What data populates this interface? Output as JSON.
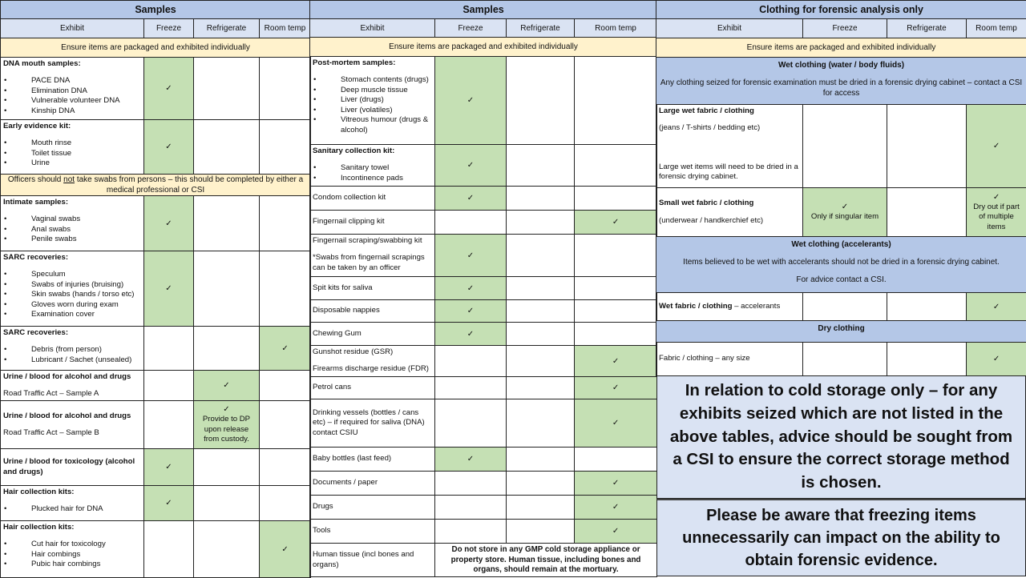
{
  "check_symbol": "✓",
  "colors": {
    "title_bg": "#b4c7e7",
    "header_bg": "#dae3f3",
    "note_bg": "#fff2cc",
    "green": "#c5e0b4"
  },
  "panels": [
    {
      "title": "Samples",
      "headers": [
        "Exhibit",
        "Freeze",
        "Refrigerate",
        "Room temp"
      ],
      "rows": [
        {
          "type": "note",
          "segs": [
            {
              "t": "Ensure items are packaged and exhibited individually"
            }
          ]
        },
        {
          "type": "item",
          "lines": [
            {
              "b": "DNA mouth samples:"
            },
            {
              "li": "PACE DNA"
            },
            {
              "li": "Elimination DNA"
            },
            {
              "li": "Vulnerable volunteer DNA"
            },
            {
              "li": "Kinship DNA"
            }
          ],
          "cells": [
            {
              "check": true
            },
            null,
            null
          ]
        },
        {
          "type": "item",
          "lines": [
            {
              "b": "Early evidence kit:"
            },
            {
              "li": "Mouth rinse"
            },
            {
              "li": "Toilet tissue"
            },
            {
              "li": "Urine"
            }
          ],
          "cells": [
            {
              "check": true
            },
            null,
            null
          ]
        },
        {
          "type": "note",
          "segs": [
            {
              "t": "Officers should "
            },
            {
              "t": "not",
              "u": true
            },
            {
              "t": " take swabs from persons – this should be completed by either a medical professional or CSI"
            }
          ]
        },
        {
          "type": "item",
          "lines": [
            {
              "b": "Intimate samples:"
            },
            {
              "li": "Vaginal swabs"
            },
            {
              "li": "Anal swabs"
            },
            {
              "li": "Penile swabs"
            }
          ],
          "cells": [
            {
              "check": true
            },
            null,
            null
          ]
        },
        {
          "type": "item",
          "lines": [
            {
              "b": "SARC recoveries:"
            },
            {
              "li": "Speculum"
            },
            {
              "li": "Swabs of injuries (bruising)"
            },
            {
              "li": "Skin swabs (hands / torso etc)"
            },
            {
              "li": "Gloves worn during exam"
            },
            {
              "li": "Examination cover"
            }
          ],
          "cells": [
            {
              "check": true
            },
            null,
            null
          ]
        },
        {
          "type": "item",
          "lines": [
            {
              "b": "SARC recoveries:"
            },
            {
              "li": "Debris (from person)"
            },
            {
              "li": "Lubricant / Sachet (unsealed)"
            }
          ],
          "cells": [
            null,
            null,
            {
              "check": true
            }
          ]
        },
        {
          "type": "item",
          "lines": [
            {
              "b": "Urine / blood for alcohol and drugs"
            },
            {
              "p": "Road Traffic Act – Sample A"
            }
          ],
          "cells": [
            null,
            {
              "check": true
            },
            null
          ]
        },
        {
          "type": "item",
          "mid": true,
          "lines": [
            {
              "b": "Urine / blood for alcohol and drugs"
            },
            {
              "p": "Road Traffic Act – Sample B"
            }
          ],
          "cells": [
            null,
            {
              "check": true,
              "text": "Provide to DP upon release from custody."
            },
            null
          ]
        },
        {
          "type": "item",
          "mid": true,
          "lines": [
            {
              "bb": "Urine / blood for toxicology (alcohol and drugs)"
            }
          ],
          "cells": [
            {
              "check": true
            },
            null,
            null
          ]
        },
        {
          "type": "item",
          "lines": [
            {
              "b": "Hair collection kits:"
            },
            {
              "li": "Plucked hair for DNA"
            }
          ],
          "cells": [
            {
              "check": true
            },
            null,
            null
          ]
        },
        {
          "type": "item",
          "lines": [
            {
              "b": "Hair collection kits:"
            },
            {
              "li": "Cut hair for toxicology"
            },
            {
              "li": "Hair combings"
            },
            {
              "li": "Pubic hair combings"
            }
          ],
          "cells": [
            null,
            null,
            {
              "check": true
            }
          ]
        }
      ]
    },
    {
      "title": "Samples",
      "headers": [
        "Exhibit",
        "Freeze",
        "Refrigerate",
        "Room temp"
      ],
      "rows": [
        {
          "type": "note",
          "segs": [
            {
              "t": "Ensure items are packaged and exhibited individually"
            }
          ]
        },
        {
          "type": "item",
          "lines": [
            {
              "b": "Post-mortem samples:"
            },
            {
              "li": "Stomach contents (drugs)"
            },
            {
              "li": "Deep muscle tissue"
            },
            {
              "li": "Liver (drugs)"
            },
            {
              "li": "Liver (volatiles)"
            },
            {
              "li": "Vitreous humour (drugs & alcohol)"
            }
          ],
          "cells": [
            {
              "check": true
            },
            null,
            null
          ]
        },
        {
          "type": "item",
          "lines": [
            {
              "b": "Sanitary collection kit:"
            },
            {
              "li": "Sanitary towel"
            },
            {
              "li": "Incontinence pads"
            }
          ],
          "cells": [
            {
              "check": true
            },
            null,
            null
          ]
        },
        {
          "type": "item",
          "mid": true,
          "lines": [
            {
              "p": "Condom collection kit"
            }
          ],
          "cells": [
            {
              "check": true
            },
            null,
            null
          ]
        },
        {
          "type": "item",
          "mid": true,
          "lines": [
            {
              "p": "Fingernail clipping kit"
            }
          ],
          "cells": [
            null,
            null,
            {
              "check": true
            }
          ]
        },
        {
          "type": "item",
          "lines": [
            {
              "p": "Fingernail scraping/swabbing kit"
            },
            {
              "p": "*Swabs from fingernail scrapings can be taken by an officer"
            }
          ],
          "cells": [
            {
              "check": true
            },
            null,
            null
          ]
        },
        {
          "type": "item",
          "mid": true,
          "lines": [
            {
              "p": "Spit kits for saliva"
            }
          ],
          "cells": [
            {
              "check": true
            },
            null,
            null
          ]
        },
        {
          "type": "item",
          "mid": true,
          "lines": [
            {
              "p": "Disposable nappies"
            }
          ],
          "cells": [
            {
              "check": true
            },
            null,
            null
          ]
        },
        {
          "type": "item",
          "mid": true,
          "lines": [
            {
              "p": "Chewing Gum"
            }
          ],
          "cells": [
            {
              "check": true
            },
            null,
            null
          ]
        },
        {
          "type": "item",
          "lines": [
            {
              "p": "Gunshot residue (GSR)"
            },
            {
              "p": "Firearms discharge residue (FDR)"
            }
          ],
          "cells": [
            null,
            null,
            {
              "check": true
            }
          ]
        },
        {
          "type": "item",
          "mid": true,
          "lines": [
            {
              "p": "Petrol cans"
            }
          ],
          "cells": [
            null,
            null,
            {
              "check": true
            }
          ]
        },
        {
          "type": "item",
          "mid": true,
          "lines": [
            {
              "p": "Drinking vessels (bottles / cans etc) – if required for saliva (DNA) contact CSIU"
            }
          ],
          "cells": [
            null,
            null,
            {
              "check": true
            }
          ]
        },
        {
          "type": "item",
          "mid": true,
          "lines": [
            {
              "p": "Baby bottles (last feed)"
            }
          ],
          "cells": [
            {
              "check": true
            },
            null,
            null
          ]
        },
        {
          "type": "item",
          "mid": true,
          "lines": [
            {
              "p": "Documents / paper"
            }
          ],
          "cells": [
            null,
            null,
            {
              "check": true
            }
          ]
        },
        {
          "type": "item",
          "mid": true,
          "lines": [
            {
              "p": "Drugs"
            }
          ],
          "cells": [
            null,
            null,
            {
              "check": true
            }
          ]
        },
        {
          "type": "item",
          "mid": true,
          "lines": [
            {
              "p": "Tools"
            }
          ],
          "cells": [
            null,
            null,
            {
              "check": true
            }
          ]
        },
        {
          "type": "item",
          "mid": true,
          "lines": [
            {
              "p": "Human tissue (incl bones and organs)"
            }
          ],
          "span_text": "Do not store in any GMP cold storage appliance or property store. Human tissue, including bones and organs, should remain at the mortuary."
        }
      ]
    },
    {
      "title": "Clothing for forensic analysis  only",
      "headers": [
        "Exhibit",
        "Freeze",
        "Refrigerate",
        "Room temp"
      ],
      "rows": [
        {
          "type": "note",
          "segs": [
            {
              "t": "Ensure items are packaged and exhibited individually"
            }
          ]
        },
        {
          "type": "section",
          "lines": [
            {
              "b": "Wet clothing (water / body fluids)"
            },
            {
              "p": "Any clothing seized for forensic examination must be dried in a forensic drying cabinet – contact a CSI for access"
            }
          ]
        },
        {
          "type": "item",
          "lines": [
            {
              "b": "Large wet fabric / clothing"
            },
            {
              "p": "(jeans / T-shirts / bedding etc)",
              "big": true
            },
            {
              "p": "Large wet items will need to be dried in a forensic drying cabinet."
            }
          ],
          "cells": [
            null,
            null,
            {
              "check": true
            }
          ]
        },
        {
          "type": "item",
          "mid": true,
          "lines": [
            {
              "b": "Small wet fabric / clothing"
            },
            {
              "p": "(underwear / handkerchief etc)"
            }
          ],
          "cells": [
            {
              "check": true,
              "text": "Only if singular item"
            },
            null,
            {
              "check": true,
              "text": "Dry out if part of multiple items"
            }
          ]
        },
        {
          "type": "section",
          "lines": [
            {
              "b": "Wet clothing (accelerants)"
            },
            {
              "p": "Items believed to be wet with accelerants should not be dried in a forensic drying cabinet."
            },
            {
              "p": "For advice contact a CSI."
            }
          ]
        },
        {
          "type": "item",
          "mid": true,
          "lines": [
            {
              "segs": [
                {
                  "t": "Wet fabric / clothing",
                  "b": true
                },
                {
                  "t": " – accelerants"
                }
              ]
            }
          ],
          "cells": [
            null,
            null,
            {
              "check": true
            }
          ]
        },
        {
          "type": "section",
          "lines": [
            {
              "b": "Dry clothing"
            }
          ]
        },
        {
          "type": "item",
          "mid": true,
          "lines": [
            {
              "p": "Fabric / clothing – any size"
            }
          ],
          "cells": [
            null,
            null,
            {
              "check": true
            }
          ]
        }
      ]
    }
  ],
  "notices": [
    "In relation to cold storage only – for any exhibits seized which are not listed in the above tables, advice should be sought from a CSI to ensure the correct storage method is chosen.",
    "Please be aware that freezing items unnecessarily can impact on the ability to obtain forensic evidence."
  ]
}
